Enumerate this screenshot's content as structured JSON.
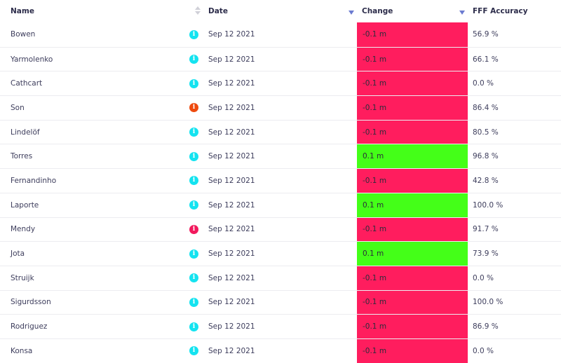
{
  "headers": {
    "name": "Name",
    "date": "Date",
    "change": "Change",
    "fff_accuracy": "FFF Accuracy"
  },
  "colors": {
    "negative": "#ff1d5e",
    "positive": "#44ff18",
    "info_default": "#14e3f0",
    "info_orange": "#ee4a0e",
    "info_red": "#f2195d"
  },
  "info_glyph": "i",
  "rows": [
    {
      "name": "Bowen",
      "icon": "info_default",
      "date": "Sep 12 2021",
      "change": "-0.1 m",
      "trend": "negative",
      "fff": "56.9 %"
    },
    {
      "name": "Yarmolenko",
      "icon": "info_default",
      "date": "Sep 12 2021",
      "change": "-0.1 m",
      "trend": "negative",
      "fff": "66.1 %"
    },
    {
      "name": "Cathcart",
      "icon": "info_default",
      "date": "Sep 12 2021",
      "change": "-0.1 m",
      "trend": "negative",
      "fff": "0.0 %"
    },
    {
      "name": "Son",
      "icon": "info_orange",
      "date": "Sep 12 2021",
      "change": "-0.1 m",
      "trend": "negative",
      "fff": "86.4 %"
    },
    {
      "name": "Lindelöf",
      "icon": "info_default",
      "date": "Sep 12 2021",
      "change": "-0.1 m",
      "trend": "negative",
      "fff": "80.5 %"
    },
    {
      "name": "Torres",
      "icon": "info_default",
      "date": "Sep 12 2021",
      "change": "0.1 m",
      "trend": "positive",
      "fff": "96.8 %"
    },
    {
      "name": "Fernandinho",
      "icon": "info_default",
      "date": "Sep 12 2021",
      "change": "-0.1 m",
      "trend": "negative",
      "fff": "42.8 %"
    },
    {
      "name": "Laporte",
      "icon": "info_default",
      "date": "Sep 12 2021",
      "change": "0.1 m",
      "trend": "positive",
      "fff": "100.0 %"
    },
    {
      "name": "Mendy",
      "icon": "info_red",
      "date": "Sep 12 2021",
      "change": "-0.1 m",
      "trend": "negative",
      "fff": "91.7 %"
    },
    {
      "name": "Jota",
      "icon": "info_default",
      "date": "Sep 12 2021",
      "change": "0.1 m",
      "trend": "positive",
      "fff": "73.9 %"
    },
    {
      "name": "Struijk",
      "icon": "info_default",
      "date": "Sep 12 2021",
      "change": "-0.1 m",
      "trend": "negative",
      "fff": "0.0 %"
    },
    {
      "name": "Sigurdsson",
      "icon": "info_default",
      "date": "Sep 12 2021",
      "change": "-0.1 m",
      "trend": "negative",
      "fff": "100.0 %"
    },
    {
      "name": "Rodriguez",
      "icon": "info_default",
      "date": "Sep 12 2021",
      "change": "-0.1 m",
      "trend": "negative",
      "fff": "86.9 %"
    },
    {
      "name": "Konsa",
      "icon": "info_default",
      "date": "Sep 12 2021",
      "change": "-0.1 m",
      "trend": "negative",
      "fff": "0.0 %"
    }
  ]
}
